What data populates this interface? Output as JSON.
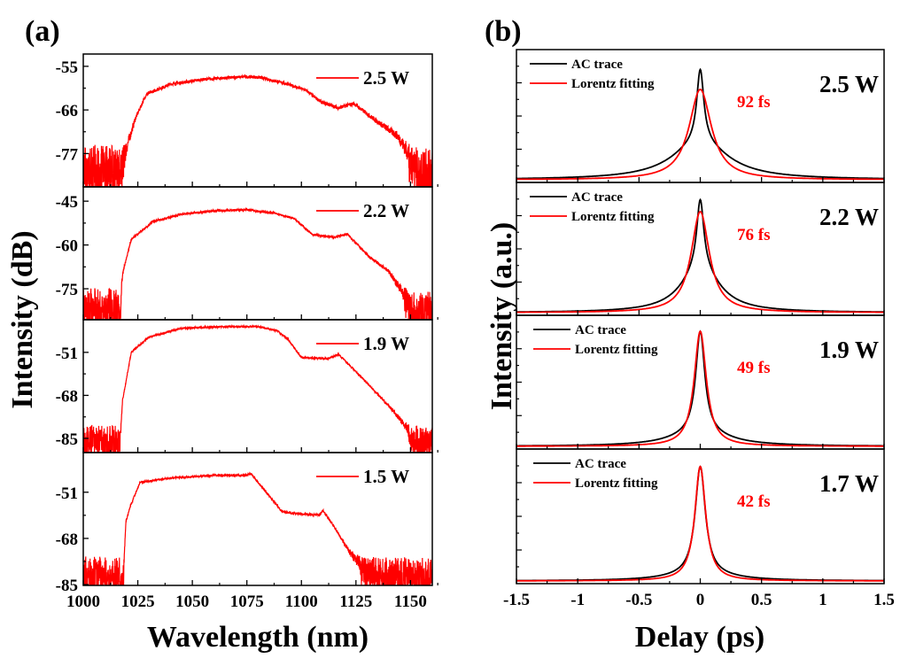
{
  "chart_data": [
    {
      "type": "line",
      "panel_label": "(a)",
      "xlabel": "Wavelength (nm)",
      "ylabel": "Intensity (dB)",
      "xlim": [
        1000,
        1160
      ],
      "xticks": [
        1000,
        1025,
        1050,
        1075,
        1100,
        1125,
        1150
      ],
      "series_color": "#ff0000",
      "panels": [
        {
          "legend": "2.5 W",
          "ylim": [
            -85.4,
            -51.9
          ],
          "yticks": [
            -55,
            -66,
            -77
          ],
          "noise_floor": -80,
          "points": [
            [
              1000,
              -80
            ],
            [
              1018,
              -80
            ],
            [
              1019.6,
              -76
            ],
            [
              1024,
              -68
            ],
            [
              1029,
              -62
            ],
            [
              1040,
              -59.5
            ],
            [
              1055,
              -58.3
            ],
            [
              1074,
              -57.6
            ],
            [
              1081,
              -57.8
            ],
            [
              1092,
              -59.2
            ],
            [
              1102,
              -61
            ],
            [
              1109,
              -64
            ],
            [
              1117,
              -65.5
            ],
            [
              1124,
              -64.4
            ],
            [
              1135,
              -69
            ],
            [
              1144,
              -72.5
            ],
            [
              1151,
              -78.5
            ],
            [
              1154,
              -81
            ],
            [
              1160,
              -81
            ]
          ]
        },
        {
          "legend": "2.2 W",
          "ylim": [
            -85.6,
            -40.1
          ],
          "yticks": [
            -45,
            -60,
            -75
          ],
          "noise_floor": -80,
          "points": [
            [
              1000,
              -80
            ],
            [
              1017,
              -80
            ],
            [
              1018,
              -70
            ],
            [
              1022,
              -58
            ],
            [
              1032,
              -52
            ],
            [
              1045,
              -49.5
            ],
            [
              1060,
              -48.3
            ],
            [
              1075,
              -47.9
            ],
            [
              1088,
              -49.2
            ],
            [
              1097,
              -51
            ],
            [
              1105,
              -56.5
            ],
            [
              1115,
              -57.4
            ],
            [
              1121,
              -56.2
            ],
            [
              1131,
              -64
            ],
            [
              1140,
              -69
            ],
            [
              1149,
              -79
            ],
            [
              1152,
              -82
            ],
            [
              1160,
              -81
            ]
          ]
        },
        {
          "legend": "1.9 W",
          "ylim": [
            -90.6,
            -38.1
          ],
          "yticks": [
            -51,
            -68,
            -85
          ],
          "noise_floor": -85,
          "points": [
            [
              1000,
              -85
            ],
            [
              1017,
              -85
            ],
            [
              1018,
              -70
            ],
            [
              1022,
              -51
            ],
            [
              1030,
              -45
            ],
            [
              1045,
              -41.5
            ],
            [
              1065,
              -40.8
            ],
            [
              1080,
              -40.8
            ],
            [
              1089,
              -42.5
            ],
            [
              1094,
              -46
            ],
            [
              1100,
              -53
            ],
            [
              1112,
              -53.5
            ],
            [
              1117,
              -51.8
            ],
            [
              1122,
              -56
            ],
            [
              1130,
              -63
            ],
            [
              1142,
              -74
            ],
            [
              1151,
              -84
            ],
            [
              1154,
              -86
            ],
            [
              1160,
              -86
            ]
          ]
        },
        {
          "legend": "1.5 W",
          "ylim": [
            -85.3,
            -36.4
          ],
          "yticks": [
            -51,
            -68,
            -85
          ],
          "noise_floor": -80,
          "points": [
            [
              1000,
              -80
            ],
            [
              1018.5,
              -80
            ],
            [
              1019.5,
              -62
            ],
            [
              1021.6,
              -56
            ],
            [
              1026,
              -47.4
            ],
            [
              1040,
              -45.8
            ],
            [
              1060,
              -44.8
            ],
            [
              1074,
              -44.8
            ],
            [
              1077,
              -44.2
            ],
            [
              1083.5,
              -50.7
            ],
            [
              1091,
              -58
            ],
            [
              1096,
              -58.8
            ],
            [
              1108,
              -59.4
            ],
            [
              1110,
              -57.7
            ],
            [
              1116,
              -65
            ],
            [
              1122,
              -73
            ],
            [
              1128,
              -78
            ],
            [
              1132,
              -80
            ],
            [
              1160,
              -80
            ]
          ]
        }
      ]
    },
    {
      "type": "line",
      "panel_label": "(b)",
      "xlabel": "Delay (ps)",
      "ylabel": "Intensity (a.u.)",
      "xlim": [
        -1.5,
        1.5
      ],
      "xticks": [
        -1.5,
        -1.0,
        -0.5,
        0.0,
        0.5,
        1.0,
        1.5
      ],
      "ylim": [
        0,
        1
      ],
      "legend": [
        "AC trace",
        "Lorentz fitting"
      ],
      "colors": {
        "ac": "#000000",
        "fit": "#ff0000"
      },
      "panels": [
        {
          "power": "2.5 W",
          "fwhm": "92 fs",
          "baseline": 0.02,
          "ac": [
            [
              0.55,
              0.035
            ],
            [
              0.28,
              0.28
            ]
          ],
          "fit": [
            [
              0.68,
              0.11
            ]
          ]
        },
        {
          "power": "2.2 W",
          "fwhm": "76 fs",
          "baseline": 0.02,
          "ac": [
            [
              0.52,
              0.035
            ],
            [
              0.33,
              0.19
            ]
          ],
          "fit": [
            [
              0.76,
              0.09
            ]
          ]
        },
        {
          "power": "1.9 W",
          "fwhm": "49 fs",
          "baseline": 0.02,
          "ac": [
            [
              0.76,
              0.045
            ],
            [
              0.1,
              0.28
            ]
          ],
          "fit": [
            [
              0.86,
              0.06
            ]
          ]
        },
        {
          "power": "1.7 W",
          "fwhm": "42 fs",
          "baseline": 0.02,
          "ac": [
            [
              0.8,
              0.05
            ],
            [
              0.05,
              0.3
            ]
          ],
          "fit": [
            [
              0.85,
              0.054
            ]
          ]
        }
      ]
    }
  ]
}
